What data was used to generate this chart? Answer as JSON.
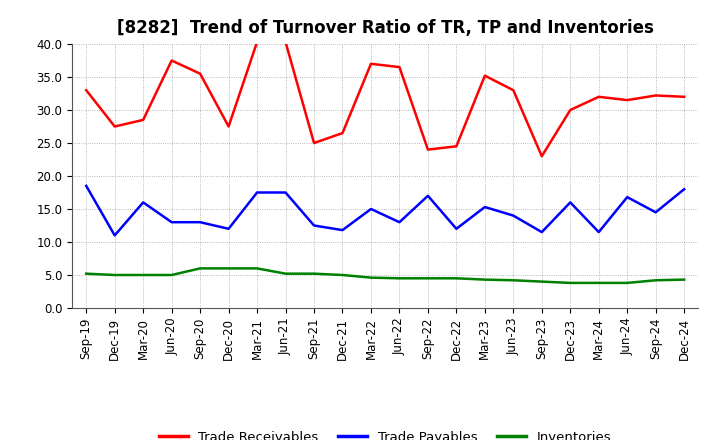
{
  "title": "[8282]  Trend of Turnover Ratio of TR, TP and Inventories",
  "x_labels": [
    "Sep-19",
    "Dec-19",
    "Mar-20",
    "Jun-20",
    "Sep-20",
    "Dec-20",
    "Mar-21",
    "Jun-21",
    "Sep-21",
    "Dec-21",
    "Mar-22",
    "Jun-22",
    "Sep-22",
    "Dec-22",
    "Mar-23",
    "Jun-23",
    "Sep-23",
    "Dec-23",
    "Mar-24",
    "Jun-24",
    "Sep-24",
    "Dec-24"
  ],
  "trade_receivables": [
    33.0,
    27.5,
    28.5,
    37.5,
    35.5,
    27.5,
    40.3,
    40.3,
    25.0,
    26.5,
    37.0,
    36.5,
    24.0,
    24.5,
    35.2,
    33.0,
    23.0,
    30.0,
    32.0,
    31.5,
    32.2,
    32.0
  ],
  "trade_payables": [
    18.5,
    11.0,
    16.0,
    13.0,
    13.0,
    12.0,
    17.5,
    17.5,
    12.5,
    11.8,
    15.0,
    13.0,
    17.0,
    12.0,
    15.3,
    14.0,
    11.5,
    16.0,
    11.5,
    16.8,
    14.5,
    18.0
  ],
  "inventories": [
    5.2,
    5.0,
    5.0,
    5.0,
    6.0,
    6.0,
    6.0,
    5.2,
    5.2,
    5.0,
    4.6,
    4.5,
    4.5,
    4.5,
    4.3,
    4.2,
    4.0,
    3.8,
    3.8,
    3.8,
    4.2,
    4.3
  ],
  "ylim": [
    0.0,
    40.0
  ],
  "yticks": [
    0.0,
    5.0,
    10.0,
    15.0,
    20.0,
    25.0,
    30.0,
    35.0,
    40.0
  ],
  "color_tr": "#FF0000",
  "color_tp": "#0000FF",
  "color_inv": "#008000",
  "bg_color": "#FFFFFF",
  "plot_bg_color": "#FFFFFF",
  "grid_color": "#999999",
  "legend_labels": [
    "Trade Receivables",
    "Trade Payables",
    "Inventories"
  ],
  "title_fontsize": 12,
  "tick_fontsize": 8.5,
  "legend_fontsize": 9.5,
  "line_width": 1.8
}
